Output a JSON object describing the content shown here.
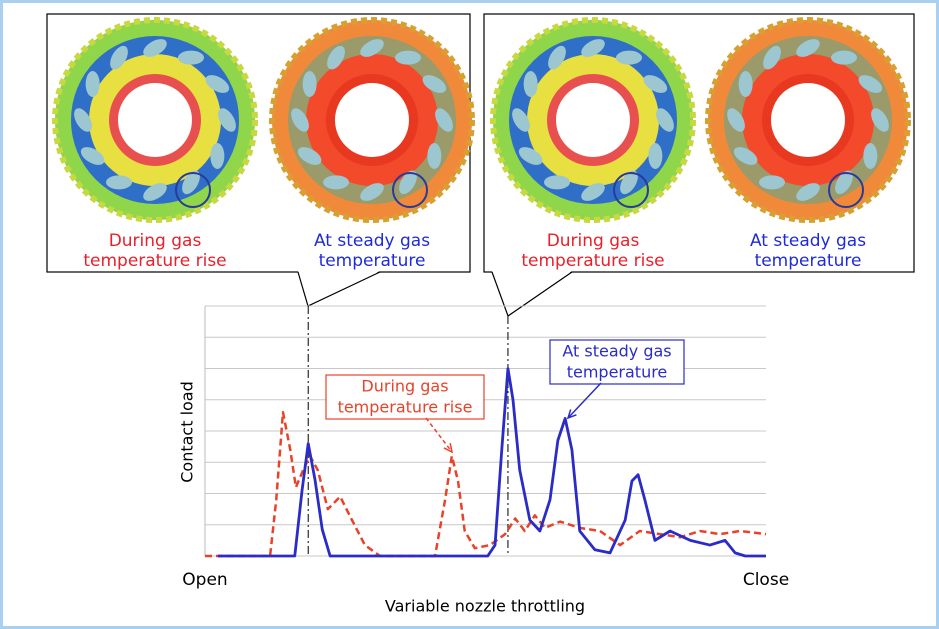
{
  "panels": [
    {
      "captions": [
        {
          "lines": [
            "During gas",
            "temperature rise"
          ],
          "color": "#e8202a"
        },
        {
          "lines": [
            "At steady gas",
            "temperature"
          ],
          "color": "#1f2bd8"
        }
      ]
    },
    {
      "captions": [
        {
          "lines": [
            "During gas",
            "temperature rise"
          ],
          "color": "#e8202a"
        },
        {
          "lines": [
            "At steady gas",
            "temperature"
          ],
          "color": "#1f2bd8"
        }
      ]
    }
  ],
  "chart_data": {
    "type": "line",
    "y_label": "Contact load",
    "x_label": "Variable nozzle throttling",
    "xlim": [
      0,
      100
    ],
    "xticks": [
      {
        "value": 0,
        "label": "Open"
      },
      {
        "value": 100,
        "label": "Close"
      }
    ],
    "ylim": [
      0,
      8
    ],
    "yticks": [
      0,
      1,
      2,
      3,
      4,
      5,
      6,
      7,
      8
    ],
    "grid": true,
    "vlines": [
      18.4,
      54
    ],
    "annotations": [
      {
        "lines": [
          "During gas",
          "temperature rise"
        ],
        "color": "#e8432a"
      },
      {
        "lines": [
          "At steady gas",
          "temperature"
        ],
        "color": "#2b2bc8"
      }
    ],
    "series": [
      {
        "color": "#e8432a",
        "dashed": true,
        "x": [
          0,
          11.6,
          12.7,
          13.9,
          15.2,
          16.2,
          17.5,
          18.7,
          20.1,
          21.9,
          24.1,
          26.2,
          28.5,
          31.2,
          41,
          42.8,
          44,
          45.1,
          46.3,
          48.1,
          50.8,
          53.5,
          55.3,
          57,
          58.8,
          60.6,
          63.3,
          66.8,
          70.4,
          74,
          77.5,
          81.1,
          84.7,
          88.2,
          91.8,
          95.4,
          100
        ],
        "values": [
          0,
          0,
          1.8,
          4.6,
          3.4,
          2.2,
          2.75,
          3.2,
          2.75,
          1.5,
          1.9,
          1.15,
          0.35,
          0,
          0,
          1.8,
          3.2,
          2.4,
          0.8,
          0.25,
          0.35,
          0.7,
          1.2,
          0.8,
          1.3,
          0.9,
          1.1,
          0.9,
          0.8,
          0.35,
          0.8,
          0.7,
          0.6,
          0.8,
          0.7,
          0.8,
          0.7
        ]
      },
      {
        "color": "#2b2bc8",
        "dashed": false,
        "x": [
          2.3,
          16,
          17.3,
          18.4,
          19.6,
          20.9,
          22.3,
          24.1,
          50.4,
          51.7,
          52.9,
          54,
          54.9,
          56.1,
          57.9,
          59.7,
          61.5,
          62.9,
          64.2,
          65.4,
          66.8,
          69.5,
          72.2,
          74.9,
          76.1,
          77.2,
          78.4,
          80.2,
          82.9,
          86.5,
          90,
          92.7,
          94.5,
          96.3,
          100
        ],
        "values": [
          0,
          0,
          2.1,
          3.6,
          2.45,
          0.85,
          0,
          0,
          0,
          0.35,
          3.4,
          6,
          5,
          2.75,
          1.15,
          0.8,
          1.8,
          3.7,
          4.4,
          3.4,
          0.8,
          0.2,
          0.1,
          1.15,
          2.4,
          2.6,
          1.8,
          0.5,
          0.8,
          0.5,
          0.35,
          0.5,
          0.1,
          0,
          0
        ]
      }
    ]
  }
}
